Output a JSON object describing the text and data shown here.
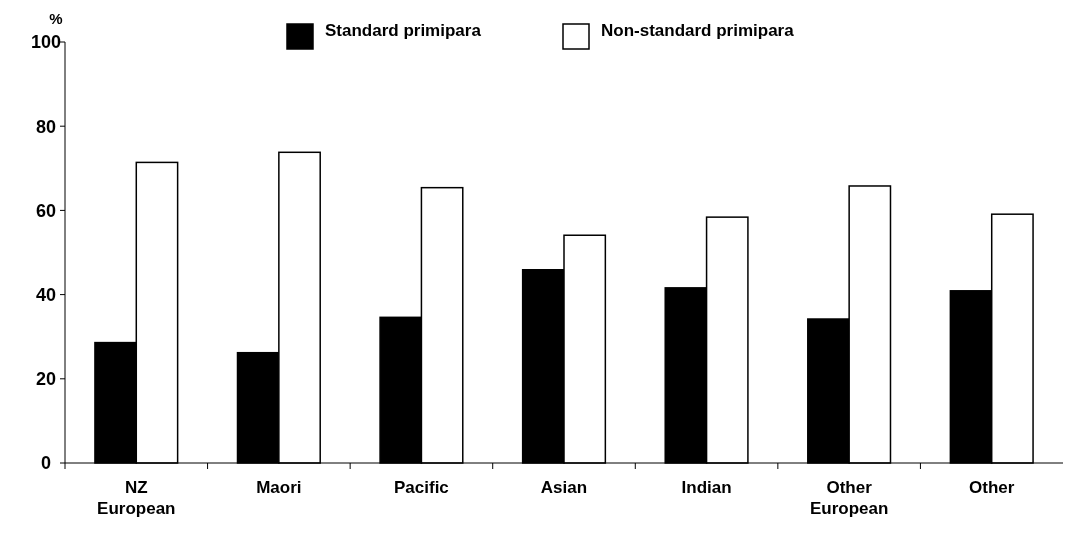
{
  "chart_data": {
    "type": "bar",
    "ylabel": "%",
    "categories": [
      "NZ European",
      "Maori",
      "Pacific",
      "Asian",
      "Indian",
      "Other European",
      "Other"
    ],
    "series": [
      {
        "name": "Standard primipara",
        "color": "#000000",
        "values": [
          28.6,
          26.2,
          34.6,
          45.9,
          41.6,
          34.2,
          40.9
        ]
      },
      {
        "name": "Non-standard primipara",
        "color": "#ffffff",
        "values": [
          71.4,
          73.8,
          65.4,
          54.1,
          58.4,
          65.8,
          59.1
        ]
      }
    ],
    "ylim": [
      0,
      100
    ],
    "yticks": [
      0,
      20,
      40,
      60,
      80,
      100
    ],
    "grid": false,
    "legend": "top"
  }
}
